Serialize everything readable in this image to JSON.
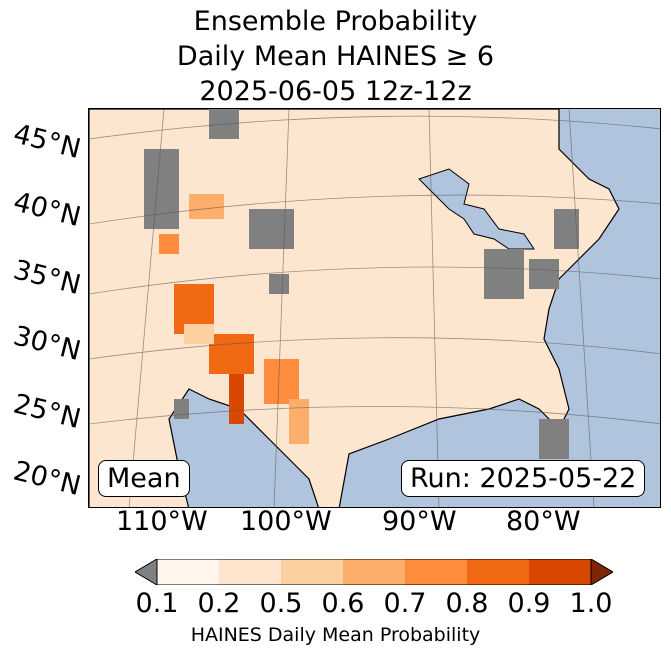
{
  "title": {
    "line1": "Ensemble Probability",
    "line2": "Daily Mean HAINES ≥ 6",
    "line3": "2025-06-05 12z-12z"
  },
  "lat_labels": [
    "45°N",
    "40°N",
    "35°N",
    "30°N",
    "25°N",
    "20°N"
  ],
  "lon_labels": [
    "110°W",
    "100°W",
    "90°W",
    "80°W"
  ],
  "map_labels": {
    "left": "Mean",
    "right": "Run: 2025-05-22"
  },
  "colorbar": {
    "label": "HAINES Daily Mean Probability",
    "ticks": [
      "0.1",
      "0.2",
      "0.5",
      "0.6",
      "0.7",
      "0.8",
      "0.9",
      "1.0"
    ],
    "colors": [
      "#fff5eb",
      "#fee6ce",
      "#fdd0a2",
      "#fdae6b",
      "#fd8d3c",
      "#f16913",
      "#d94801",
      "#a63603"
    ],
    "under_color": "#808080"
  },
  "map_colors": {
    "ocean": "#b0c4de",
    "land": "#fde6cf",
    "missing": "#808080"
  }
}
